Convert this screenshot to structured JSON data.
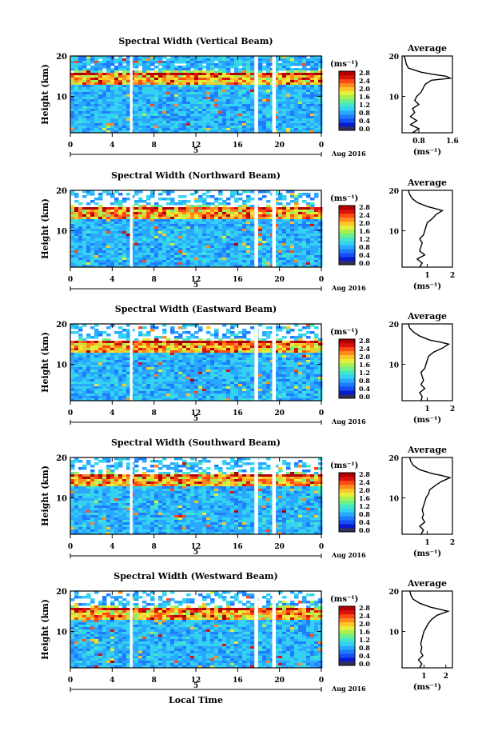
{
  "xlabel": "Local Time",
  "date_label": "Aug 2016",
  "day_label": "5",
  "colorbar": {
    "unit_label": "(ms⁻¹)",
    "ticks": [
      "0.0",
      "0.4",
      "0.8",
      "1.2",
      "1.6",
      "2.0",
      "2.4",
      "2.8"
    ],
    "colors": [
      "#303058",
      "#0a1ad0",
      "#1450f5",
      "#1e7cff",
      "#2aa8ff",
      "#34d2f0",
      "#45e6c8",
      "#6ef08a",
      "#a8f050",
      "#e6f03a",
      "#ffc428",
      "#ff8a1e",
      "#ff4a14",
      "#d8120e",
      "#b00000"
    ]
  },
  "avg_panel": {
    "title": "Average",
    "xlabel": "(ms⁻¹)"
  },
  "chart_data": [
    {
      "type": "heatmap",
      "title": "Spectral Width (Vertical Beam)",
      "ylabel": "Height (km)",
      "x_ticks": [
        "0",
        "4",
        "8",
        "12",
        "16",
        "20",
        "0"
      ],
      "y_ticks": [
        "10",
        "20"
      ],
      "xlim": [
        0,
        24
      ],
      "ylim": [
        1,
        20
      ],
      "data_gaps_hours": [
        [
          5.7,
          5.95
        ],
        [
          17.6,
          17.95
        ],
        [
          19.3,
          19.65
        ]
      ],
      "avg_profile": {
        "x_ticks": [
          "0.8",
          "1.6"
        ],
        "xlim": [
          0.4,
          1.6
        ],
        "ylim": [
          1,
          20
        ],
        "height_km": [
          1,
          2,
          3,
          4,
          5,
          6,
          7,
          8,
          9,
          10,
          11,
          12,
          13,
          14,
          14.5,
          15,
          15.5,
          16,
          17,
          18,
          19,
          20
        ],
        "width_ms": [
          0.65,
          0.8,
          0.6,
          0.75,
          0.6,
          0.7,
          0.65,
          0.8,
          0.7,
          0.75,
          0.85,
          0.9,
          0.95,
          1.1,
          1.55,
          1.45,
          1.1,
          0.85,
          0.55,
          0.5,
          0.48,
          0.45
        ]
      }
    },
    {
      "type": "heatmap",
      "title": "Spectral Width (Northward Beam)",
      "ylabel": "Height (km)",
      "x_ticks": [
        "0",
        "4",
        "8",
        "12",
        "16",
        "20",
        "0"
      ],
      "y_ticks": [
        "10",
        "20"
      ],
      "xlim": [
        0,
        24
      ],
      "ylim": [
        1,
        20
      ],
      "data_gaps_hours": [
        [
          5.7,
          5.95
        ],
        [
          17.6,
          17.95
        ],
        [
          19.3,
          19.65
        ]
      ],
      "avg_profile": {
        "x_ticks": [
          "1",
          "2"
        ],
        "xlim": [
          0,
          2
        ],
        "ylim": [
          1,
          20
        ],
        "height_km": [
          1,
          2,
          3,
          4,
          5,
          6,
          7,
          8,
          9,
          10,
          11,
          12,
          13,
          14,
          15,
          15.5,
          16,
          17,
          18,
          19,
          20
        ],
        "width_ms": [
          0.7,
          0.8,
          0.6,
          0.9,
          0.7,
          0.75,
          0.8,
          0.7,
          0.85,
          0.9,
          0.95,
          1.0,
          1.2,
          1.35,
          1.6,
          1.3,
          1.0,
          0.6,
          0.4,
          0.3,
          0.25
        ]
      }
    },
    {
      "type": "heatmap",
      "title": "Spectral Width (Eastward Beam)",
      "ylabel": "Height (km)",
      "x_ticks": [
        "0",
        "4",
        "8",
        "12",
        "16",
        "20",
        "0"
      ],
      "y_ticks": [
        "10",
        "20"
      ],
      "xlim": [
        0,
        24
      ],
      "ylim": [
        1,
        20
      ],
      "data_gaps_hours": [
        [
          5.7,
          5.95
        ],
        [
          17.6,
          17.95
        ],
        [
          19.3,
          19.65
        ]
      ],
      "avg_profile": {
        "x_ticks": [
          "1",
          "2"
        ],
        "xlim": [
          0,
          2
        ],
        "ylim": [
          1,
          20
        ],
        "height_km": [
          1,
          2,
          3,
          4,
          5,
          6,
          7,
          8,
          9,
          10,
          11,
          12,
          13,
          14,
          15,
          15.5,
          16,
          17,
          18,
          19,
          20
        ],
        "width_ms": [
          0.75,
          0.8,
          0.7,
          0.9,
          0.75,
          0.85,
          0.8,
          0.75,
          0.9,
          0.95,
          1.0,
          1.05,
          1.25,
          1.6,
          1.85,
          1.5,
          1.1,
          0.7,
          0.45,
          0.3,
          0.25
        ]
      }
    },
    {
      "type": "heatmap",
      "title": "Spectral Width (Southward Beam)",
      "ylabel": "Height (km)",
      "x_ticks": [
        "0",
        "4",
        "8",
        "12",
        "16",
        "20",
        "0"
      ],
      "y_ticks": [
        "10",
        "20"
      ],
      "xlim": [
        0,
        24
      ],
      "ylim": [
        1,
        20
      ],
      "data_gaps_hours": [
        [
          5.7,
          5.95
        ],
        [
          17.6,
          17.95
        ],
        [
          19.3,
          19.65
        ]
      ],
      "avg_profile": {
        "x_ticks": [
          "1",
          "2"
        ],
        "xlim": [
          0,
          2
        ],
        "ylim": [
          1,
          20
        ],
        "height_km": [
          1,
          2,
          3,
          4,
          5,
          6,
          7,
          8,
          9,
          10,
          11,
          12,
          13,
          14,
          15,
          15.5,
          16,
          17,
          18,
          19,
          20
        ],
        "width_ms": [
          0.75,
          0.85,
          0.7,
          0.9,
          0.8,
          0.85,
          0.8,
          0.85,
          0.9,
          0.95,
          1.05,
          1.1,
          1.3,
          1.55,
          1.9,
          1.6,
          1.2,
          0.7,
          0.45,
          0.35,
          0.3
        ]
      }
    },
    {
      "type": "heatmap",
      "title": "Spectral Width (Westward Beam)",
      "ylabel": "Height (km)",
      "x_ticks": [
        "0",
        "4",
        "8",
        "12",
        "16",
        "20",
        "0"
      ],
      "y_ticks": [
        "10",
        "20"
      ],
      "xlim": [
        0,
        24
      ],
      "ylim": [
        1,
        20
      ],
      "data_gaps_hours": [
        [
          5.7,
          5.95
        ],
        [
          17.6,
          17.95
        ],
        [
          19.3,
          19.65
        ]
      ],
      "avg_profile": {
        "x_ticks": [
          "1",
          "2"
        ],
        "xlim": [
          0,
          2.3
        ],
        "ylim": [
          1,
          20
        ],
        "height_km": [
          1,
          2,
          3,
          4,
          5,
          6,
          7,
          8,
          9,
          10,
          11,
          12,
          13,
          14,
          15,
          15.5,
          16,
          17,
          18,
          19,
          20
        ],
        "width_ms": [
          0.8,
          0.9,
          0.75,
          0.95,
          0.85,
          0.9,
          0.85,
          0.9,
          0.95,
          1.0,
          1.1,
          1.2,
          1.35,
          1.6,
          2.1,
          1.7,
          1.3,
          0.8,
          0.5,
          0.4,
          0.35
        ]
      }
    }
  ]
}
